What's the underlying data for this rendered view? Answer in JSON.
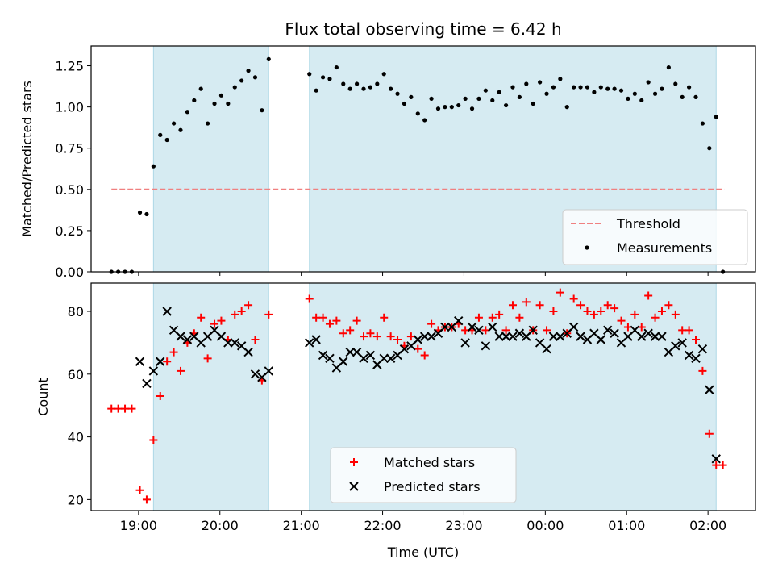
{
  "chart_data": [
    {
      "type": "scatter",
      "title": "Flux total observing time = 6.42 h",
      "xlabel": "",
      "ylabel": "Matched/Predicted stars",
      "ylim": [
        0,
        1.37
      ],
      "yticks": [
        "0.00",
        "0.25",
        "0.50",
        "0.75",
        "1.00",
        "1.25"
      ],
      "xticks": [
        "19:00",
        "20:00",
        "21:00",
        "22:00",
        "23:00",
        "00:00",
        "01:00",
        "02:00"
      ],
      "shaded_intervals": [
        [
          "19:11",
          "20:36"
        ],
        [
          "21:06",
          "02:06"
        ]
      ],
      "legend_position": "lower-right",
      "threshold": {
        "name": "Threshold",
        "value": 0.5,
        "from": "18:40",
        "to": "02:12",
        "color": "#f08080"
      },
      "series": [
        {
          "name": "Measurements",
          "marker": "dot",
          "color": "#000000",
          "points": [
            [
              "18:40",
              0.0
            ],
            [
              "18:45",
              0.0
            ],
            [
              "18:50",
              0.0
            ],
            [
              "18:55",
              0.0
            ],
            [
              "19:01",
              0.36
            ],
            [
              "19:06",
              0.35
            ],
            [
              "19:11",
              0.64
            ],
            [
              "19:16",
              0.83
            ],
            [
              "19:21",
              0.8
            ],
            [
              "19:26",
              0.9
            ],
            [
              "19:31",
              0.86
            ],
            [
              "19:36",
              0.97
            ],
            [
              "19:41",
              1.04
            ],
            [
              "19:46",
              1.11
            ],
            [
              "19:51",
              0.9
            ],
            [
              "19:56",
              1.02
            ],
            [
              "20:01",
              1.07
            ],
            [
              "20:06",
              1.02
            ],
            [
              "20:11",
              1.12
            ],
            [
              "20:16",
              1.16
            ],
            [
              "20:21",
              1.22
            ],
            [
              "20:26",
              1.18
            ],
            [
              "20:31",
              0.98
            ],
            [
              "20:36",
              1.29
            ],
            [
              "21:06",
              1.2
            ],
            [
              "21:11",
              1.1
            ],
            [
              "21:16",
              1.18
            ],
            [
              "21:21",
              1.17
            ],
            [
              "21:26",
              1.24
            ],
            [
              "21:31",
              1.14
            ],
            [
              "21:36",
              1.11
            ],
            [
              "21:41",
              1.14
            ],
            [
              "21:46",
              1.11
            ],
            [
              "21:51",
              1.12
            ],
            [
              "21:56",
              1.14
            ],
            [
              "22:01",
              1.2
            ],
            [
              "22:06",
              1.11
            ],
            [
              "22:11",
              1.08
            ],
            [
              "22:16",
              1.02
            ],
            [
              "22:21",
              1.06
            ],
            [
              "22:26",
              0.96
            ],
            [
              "22:31",
              0.92
            ],
            [
              "22:36",
              1.05
            ],
            [
              "22:41",
              0.99
            ],
            [
              "22:46",
              1.0
            ],
            [
              "22:51",
              1.0
            ],
            [
              "22:56",
              1.01
            ],
            [
              "23:01",
              1.05
            ],
            [
              "23:06",
              0.99
            ],
            [
              "23:11",
              1.05
            ],
            [
              "23:16",
              1.1
            ],
            [
              "23:21",
              1.04
            ],
            [
              "23:26",
              1.09
            ],
            [
              "23:31",
              1.01
            ],
            [
              "23:36",
              1.12
            ],
            [
              "23:41",
              1.06
            ],
            [
              "23:46",
              1.14
            ],
            [
              "23:51",
              1.02
            ],
            [
              "23:56",
              1.15
            ],
            [
              "00:01",
              1.08
            ],
            [
              "00:06",
              1.12
            ],
            [
              "00:11",
              1.17
            ],
            [
              "00:16",
              1.0
            ],
            [
              "00:21",
              1.12
            ],
            [
              "00:26",
              1.12
            ],
            [
              "00:31",
              1.12
            ],
            [
              "00:36",
              1.09
            ],
            [
              "00:41",
              1.12
            ],
            [
              "00:46",
              1.11
            ],
            [
              "00:51",
              1.11
            ],
            [
              "00:56",
              1.1
            ],
            [
              "01:01",
              1.05
            ],
            [
              "01:06",
              1.08
            ],
            [
              "01:11",
              1.04
            ],
            [
              "01:16",
              1.15
            ],
            [
              "01:21",
              1.08
            ],
            [
              "01:26",
              1.11
            ],
            [
              "01:31",
              1.24
            ],
            [
              "01:36",
              1.14
            ],
            [
              "01:41",
              1.06
            ],
            [
              "01:46",
              1.12
            ],
            [
              "01:51",
              1.06
            ],
            [
              "01:56",
              0.9
            ],
            [
              "02:01",
              0.75
            ],
            [
              "02:06",
              0.94
            ],
            [
              "02:11",
              0.0
            ]
          ]
        }
      ]
    },
    {
      "type": "scatter",
      "title": "",
      "xlabel": "Time (UTC)",
      "ylabel": "Count",
      "ylim": [
        16.5,
        89
      ],
      "yticks": [
        "20",
        "40",
        "60",
        "80"
      ],
      "xticks": [
        "19:00",
        "20:00",
        "21:00",
        "22:00",
        "23:00",
        "00:00",
        "01:00",
        "02:00"
      ],
      "shaded_intervals": [
        [
          "19:11",
          "20:36"
        ],
        [
          "21:06",
          "02:06"
        ]
      ],
      "legend_position": "lower-center",
      "series": [
        {
          "name": "Matched stars",
          "marker": "plus",
          "color": "#ff0000",
          "points": [
            [
              "18:40",
              49
            ],
            [
              "18:45",
              49
            ],
            [
              "18:50",
              49
            ],
            [
              "18:55",
              49
            ],
            [
              "19:01",
              23
            ],
            [
              "19:06",
              20
            ],
            [
              "19:11",
              39
            ],
            [
              "19:16",
              53
            ],
            [
              "19:21",
              64
            ],
            [
              "19:26",
              67
            ],
            [
              "19:31",
              61
            ],
            [
              "19:36",
              70
            ],
            [
              "19:41",
              73
            ],
            [
              "19:46",
              78
            ],
            [
              "19:51",
              65
            ],
            [
              "19:56",
              76
            ],
            [
              "20:01",
              77
            ],
            [
              "20:06",
              71
            ],
            [
              "20:11",
              79
            ],
            [
              "20:16",
              80
            ],
            [
              "20:21",
              82
            ],
            [
              "20:26",
              71
            ],
            [
              "20:31",
              58
            ],
            [
              "20:36",
              79
            ],
            [
              "21:06",
              84
            ],
            [
              "21:11",
              78
            ],
            [
              "21:16",
              78
            ],
            [
              "21:21",
              76
            ],
            [
              "21:26",
              77
            ],
            [
              "21:31",
              73
            ],
            [
              "21:36",
              74
            ],
            [
              "21:41",
              77
            ],
            [
              "21:46",
              72
            ],
            [
              "21:51",
              73
            ],
            [
              "21:56",
              72
            ],
            [
              "22:01",
              78
            ],
            [
              "22:06",
              72
            ],
            [
              "22:11",
              71
            ],
            [
              "22:16",
              69
            ],
            [
              "22:21",
              72
            ],
            [
              "22:26",
              68
            ],
            [
              "22:31",
              66
            ],
            [
              "22:36",
              76
            ],
            [
              "22:41",
              74
            ],
            [
              "22:46",
              75
            ],
            [
              "22:51",
              75
            ],
            [
              "22:56",
              76
            ],
            [
              "23:01",
              74
            ],
            [
              "23:06",
              74
            ],
            [
              "23:11",
              78
            ],
            [
              "23:16",
              74
            ],
            [
              "23:21",
              78
            ],
            [
              "23:26",
              79
            ],
            [
              "23:31",
              74
            ],
            [
              "23:36",
              82
            ],
            [
              "23:41",
              78
            ],
            [
              "23:46",
              83
            ],
            [
              "23:51",
              74
            ],
            [
              "23:56",
              82
            ],
            [
              "00:01",
              74
            ],
            [
              "00:06",
              80
            ],
            [
              "00:11",
              86
            ],
            [
              "00:16",
              73
            ],
            [
              "00:21",
              84
            ],
            [
              "00:26",
              82
            ],
            [
              "00:31",
              80
            ],
            [
              "00:36",
              79
            ],
            [
              "00:41",
              80
            ],
            [
              "00:46",
              82
            ],
            [
              "00:51",
              81
            ],
            [
              "00:56",
              77
            ],
            [
              "01:01",
              75
            ],
            [
              "01:06",
              79
            ],
            [
              "01:11",
              75
            ],
            [
              "01:16",
              85
            ],
            [
              "01:21",
              78
            ],
            [
              "01:26",
              80
            ],
            [
              "01:31",
              82
            ],
            [
              "01:36",
              79
            ],
            [
              "01:41",
              74
            ],
            [
              "01:46",
              74
            ],
            [
              "01:51",
              71
            ],
            [
              "01:56",
              61
            ],
            [
              "02:01",
              41
            ],
            [
              "02:06",
              31
            ],
            [
              "02:11",
              31
            ]
          ]
        },
        {
          "name": "Predicted stars",
          "marker": "x",
          "color": "#000000",
          "points": [
            [
              "19:01",
              64
            ],
            [
              "19:06",
              57
            ],
            [
              "19:11",
              61
            ],
            [
              "19:16",
              64
            ],
            [
              "19:21",
              80
            ],
            [
              "19:26",
              74
            ],
            [
              "19:31",
              72
            ],
            [
              "19:36",
              71
            ],
            [
              "19:41",
              72
            ],
            [
              "19:46",
              70
            ],
            [
              "19:51",
              72
            ],
            [
              "19:56",
              74
            ],
            [
              "20:01",
              72
            ],
            [
              "20:06",
              70
            ],
            [
              "20:11",
              70
            ],
            [
              "20:16",
              69
            ],
            [
              "20:21",
              67
            ],
            [
              "20:26",
              60
            ],
            [
              "20:31",
              59
            ],
            [
              "20:36",
              61
            ],
            [
              "21:06",
              70
            ],
            [
              "21:11",
              71
            ],
            [
              "21:16",
              66
            ],
            [
              "21:21",
              65
            ],
            [
              "21:26",
              62
            ],
            [
              "21:31",
              64
            ],
            [
              "21:36",
              67
            ],
            [
              "21:41",
              67
            ],
            [
              "21:46",
              65
            ],
            [
              "21:51",
              66
            ],
            [
              "21:56",
              63
            ],
            [
              "22:01",
              65
            ],
            [
              "22:06",
              65
            ],
            [
              "22:11",
              66
            ],
            [
              "22:16",
              68
            ],
            [
              "22:21",
              69
            ],
            [
              "22:26",
              71
            ],
            [
              "22:31",
              72
            ],
            [
              "22:36",
              72
            ],
            [
              "22:41",
              73
            ],
            [
              "22:46",
              75
            ],
            [
              "22:51",
              75
            ],
            [
              "22:56",
              77
            ],
            [
              "23:01",
              70
            ],
            [
              "23:06",
              75
            ],
            [
              "23:11",
              74
            ],
            [
              "23:16",
              69
            ],
            [
              "23:21",
              75
            ],
            [
              "23:26",
              72
            ],
            [
              "23:31",
              72
            ],
            [
              "23:36",
              72
            ],
            [
              "23:41",
              73
            ],
            [
              "23:46",
              72
            ],
            [
              "23:51",
              74
            ],
            [
              "23:56",
              70
            ],
            [
              "00:01",
              68
            ],
            [
              "00:06",
              72
            ],
            [
              "00:11",
              72
            ],
            [
              "00:16",
              73
            ],
            [
              "00:21",
              75
            ],
            [
              "00:26",
              72
            ],
            [
              "00:31",
              71
            ],
            [
              "00:36",
              73
            ],
            [
              "00:41",
              71
            ],
            [
              "00:46",
              74
            ],
            [
              "00:51",
              73
            ],
            [
              "00:56",
              70
            ],
            [
              "01:01",
              72
            ],
            [
              "01:06",
              74
            ],
            [
              "01:11",
              72
            ],
            [
              "01:16",
              73
            ],
            [
              "01:21",
              72
            ],
            [
              "01:26",
              72
            ],
            [
              "01:31",
              67
            ],
            [
              "01:36",
              69
            ],
            [
              "01:41",
              70
            ],
            [
              "01:46",
              66
            ],
            [
              "01:51",
              65
            ],
            [
              "01:56",
              68
            ],
            [
              "02:01",
              55
            ],
            [
              "02:06",
              33
            ]
          ]
        }
      ]
    }
  ]
}
